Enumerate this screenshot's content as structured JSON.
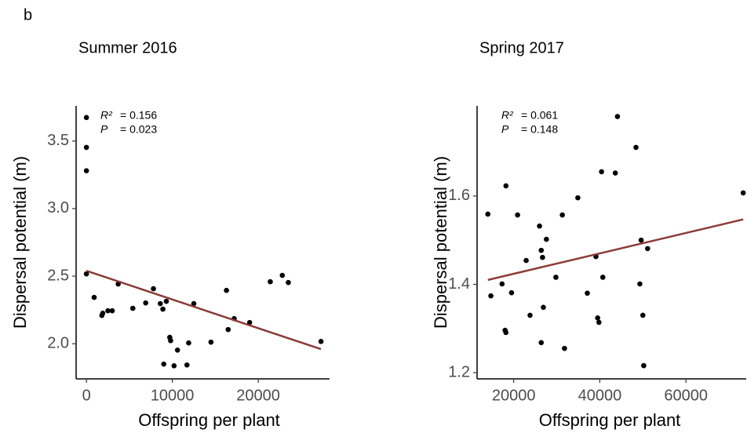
{
  "panel_label": "b",
  "chart_data": [
    {
      "type": "scatter",
      "title": "Summer 2016",
      "x_label": "Offspring per plant",
      "y_label": "Dispersal potential (m)",
      "annotations": {
        "r2_label": "R²",
        "r2_text": "= 0.156",
        "p_label": "P",
        "p_text": "= 0.023"
      },
      "color": "#000000",
      "x": [
        0,
        0,
        0,
        0,
        900,
        1800,
        1900,
        2500,
        3000,
        3700,
        5400,
        6900,
        7800,
        8600,
        8900,
        9300,
        9000,
        9700,
        9800,
        10200,
        10600,
        11700,
        11900,
        12500,
        14500,
        16300,
        16500,
        17200,
        19000,
        21400,
        22800,
        23500,
        27300
      ],
      "y": [
        3.674,
        3.453,
        3.28,
        2.517,
        2.343,
        2.209,
        2.226,
        2.244,
        2.244,
        2.442,
        2.262,
        2.302,
        2.407,
        2.297,
        2.256,
        2.314,
        1.849,
        2.047,
        2.023,
        1.837,
        1.953,
        1.843,
        2.006,
        2.297,
        2.012,
        2.395,
        2.105,
        2.186,
        2.157,
        2.459,
        2.506,
        2.453,
        2.017
      ],
      "trend_line": {
        "color": "#8b3a36",
        "x": [
          0,
          27300
        ],
        "y": [
          2.54,
          1.96
        ]
      },
      "xlim": [
        -1200,
        28300
      ],
      "ylim": [
        1.74,
        3.76
      ],
      "xticks": [
        0,
        10000,
        20000
      ],
      "yticks": [
        {
          "value": 2,
          "label": "2.0"
        },
        2.5,
        {
          "value": 3,
          "label": "3.0"
        },
        3.5
      ]
    },
    {
      "type": "scatter",
      "title": "Spring 2017",
      "x_label": "Offspring per plant",
      "y_label": "Dispersal potential (m)",
      "annotations": {
        "r2_label": "R²",
        "r2_text": "= 0.061",
        "p_label": "P",
        "p_text": "= 0.148"
      },
      "color": "#000000",
      "x": [
        14000,
        14700,
        17300,
        18200,
        18000,
        18200,
        19500,
        20900,
        22900,
        23800,
        26000,
        26400,
        26700,
        27600,
        26900,
        26400,
        29800,
        31300,
        31800,
        34900,
        37100,
        39100,
        39500,
        39800,
        40400,
        40700,
        43600,
        44100,
        48400,
        49300,
        49600,
        50000,
        50200,
        51100,
        73300
      ],
      "y": [
        1.559,
        1.374,
        1.401,
        1.623,
        1.296,
        1.291,
        1.381,
        1.557,
        1.454,
        1.33,
        1.532,
        1.477,
        1.461,
        1.502,
        1.348,
        1.268,
        1.416,
        1.557,
        1.255,
        1.596,
        1.38,
        1.463,
        1.324,
        1.314,
        1.655,
        1.416,
        1.652,
        1.78,
        1.71,
        1.401,
        1.5,
        1.33,
        1.216,
        1.481,
        1.607
      ],
      "trend_line": {
        "color": "#8b3a36",
        "x": [
          14000,
          73300
        ],
        "y": [
          1.41,
          1.547
        ]
      },
      "xlim": [
        11500,
        74000
      ],
      "ylim": [
        1.186,
        1.804
      ],
      "xticks": [
        20000,
        40000,
        60000
      ],
      "yticks": [
        1.2,
        1.4,
        1.6
      ]
    }
  ]
}
